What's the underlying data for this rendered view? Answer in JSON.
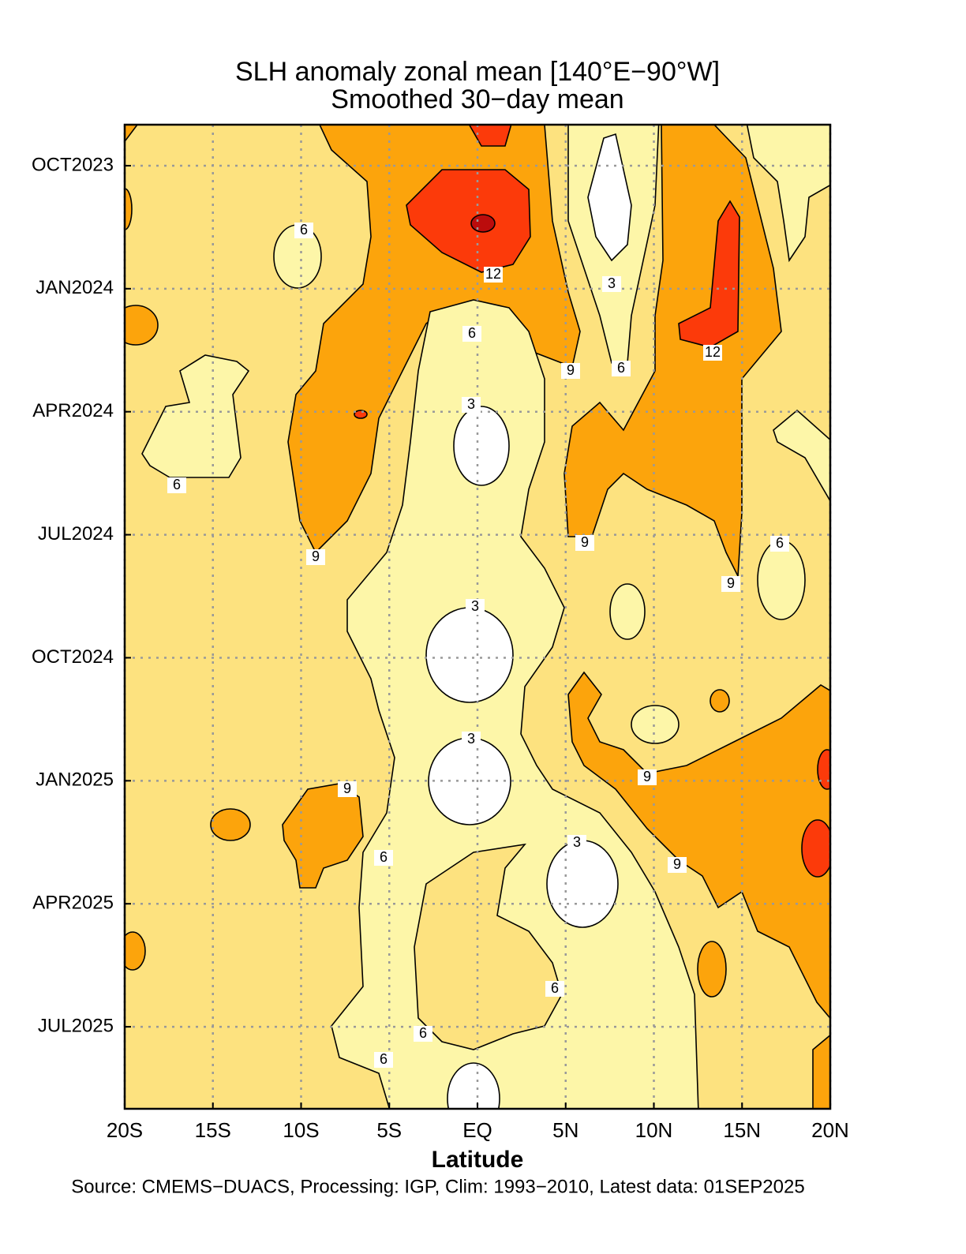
{
  "chart_data": {
    "type": "contour",
    "title": "SLH anomaly zonal mean [140°E−90°W]",
    "subtitle": "Smoothed 30−day mean",
    "x_label": "Latitude",
    "caption": "Source: CMEMS−DUACS, Processing: IGP, Clim: 1993−2010, Latest data: 01SEP2025",
    "xlim": [
      -20,
      20
    ],
    "xticks": [
      {
        "value": -20,
        "label": "20S"
      },
      {
        "value": -15,
        "label": "15S"
      },
      {
        "value": -10,
        "label": "10S"
      },
      {
        "value": -5,
        "label": "5S"
      },
      {
        "value": 0,
        "label": "EQ"
      },
      {
        "value": 5,
        "label": "5N"
      },
      {
        "value": 10,
        "label": "10N"
      },
      {
        "value": 15,
        "label": "15N"
      },
      {
        "value": 20,
        "label": "20N"
      }
    ],
    "ylim": [
      "2023-09",
      "2025-09"
    ],
    "yticks": [
      {
        "value": "2023-10",
        "label": "OCT2023"
      },
      {
        "value": "2024-01",
        "label": "JAN2024"
      },
      {
        "value": "2024-04",
        "label": "APR2024"
      },
      {
        "value": "2024-07",
        "label": "JUL2024"
      },
      {
        "value": "2024-10",
        "label": "OCT2024"
      },
      {
        "value": "2025-01",
        "label": "JAN2025"
      },
      {
        "value": "2025-04",
        "label": "APR2025"
      },
      {
        "value": "2025-07",
        "label": "JUL2025"
      }
    ],
    "grid": true,
    "contour_labels": [
      6,
      12,
      3,
      6,
      9,
      6,
      12,
      3,
      6,
      9,
      9,
      6,
      9,
      3,
      3,
      9,
      9,
      6,
      3,
      9,
      6,
      6,
      6
    ]
  }
}
